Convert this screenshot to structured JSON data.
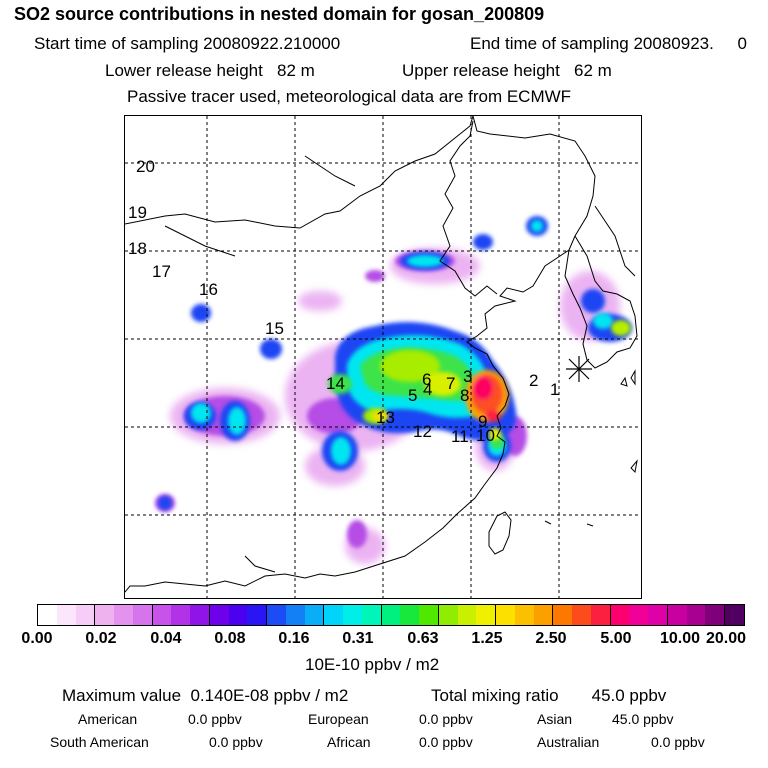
{
  "title": "SO2 source contributions in nested domain for gosan_200809",
  "header": {
    "start_label": "Start time of sampling 20080922.210000",
    "end_label": "End time of sampling 20080923.     0",
    "lower_label": "Lower release height   82 m",
    "upper_label": "Upper release height   62 m",
    "tracer_line": "Passive tracer used, meteorological data are from ECMWF"
  },
  "map": {
    "source_labels": [
      "1",
      "2",
      "3",
      "4",
      "5",
      "6",
      "7",
      "8",
      "9",
      "10",
      "11",
      "12",
      "13",
      "14",
      "15",
      "16",
      "17",
      "18",
      "19",
      "20"
    ],
    "receptor_marker": "star-marker-icon"
  },
  "colorbar": {
    "colors": [
      "#ffffff",
      "#fbe6fb",
      "#f6cdf6",
      "#eeb3ee",
      "#e393ed",
      "#d675eb",
      "#c853ea",
      "#b232e8",
      "#9013e8",
      "#6f00ea",
      "#4b00f0",
      "#2a16f5",
      "#1c4cf5",
      "#1480f5",
      "#0aaef7",
      "#00d4f8",
      "#00eee8",
      "#00f5b8",
      "#00f080",
      "#18e83c",
      "#50e800",
      "#90ec00",
      "#c8f000",
      "#eef000",
      "#fce000",
      "#fcc000",
      "#fca000",
      "#fc7800",
      "#fc4c1c",
      "#fc2040",
      "#fc0070",
      "#f00098",
      "#e000a8",
      "#c800a0",
      "#a80090",
      "#80007c",
      "#500060"
    ],
    "ticks": [
      "0.00",
      "0.02",
      "0.04",
      "0.08",
      "0.16",
      "0.31",
      "0.63",
      "1.25",
      "2.50",
      "5.00",
      "10.00",
      "20.00"
    ],
    "unit": "10E-10 ppbv / m2"
  },
  "footer": {
    "max_label": "Maximum value  0.140E-08 ppbv / m2",
    "total_label": "Total mixing ratio       45.0 ppbv",
    "american_label": "American",
    "american_value": "0.0 ppbv",
    "european_label": "European",
    "european_value": "0.0 ppbv",
    "asian_label": "Asian",
    "asian_value": "45.0 ppbv",
    "south_american_label": "South American",
    "south_american_value": "0.0 ppbv",
    "african_label": "African",
    "african_value": "0.0 ppbv",
    "australian_label": "Australian",
    "australian_value": "0.0 ppbv"
  }
}
